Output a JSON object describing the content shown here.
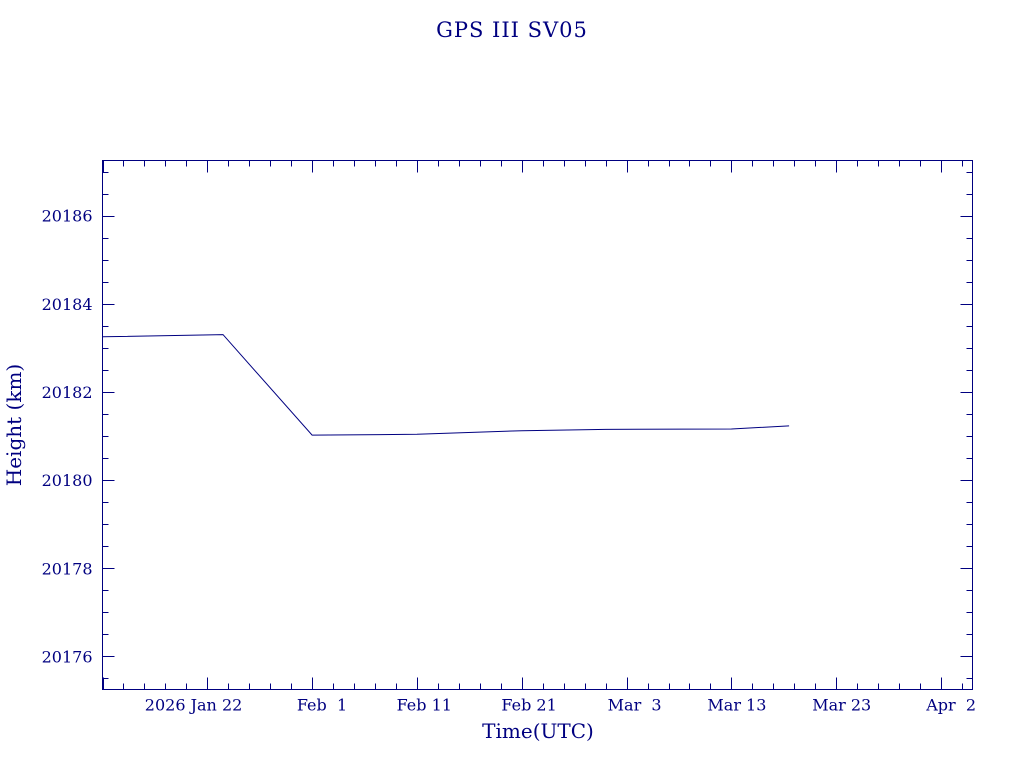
{
  "chart_data": {
    "type": "line",
    "title": "GPS III SV05",
    "xlabel": "Time(UTC)",
    "ylabel": "Height (km)",
    "x_ticks": [
      {
        "date": "2026-01-22",
        "label": "2026 Jan 22"
      },
      {
        "date": "2026-02-01",
        "label": "Feb  1"
      },
      {
        "date": "2026-02-11",
        "label": "Feb 11"
      },
      {
        "date": "2026-02-21",
        "label": "Feb 21"
      },
      {
        "date": "2026-03-03",
        "label": "Mar  3"
      },
      {
        "date": "2026-03-13",
        "label": "Mar 13"
      },
      {
        "date": "2026-03-23",
        "label": "Mar 23"
      },
      {
        "date": "2026-04-02",
        "label": "Apr  2"
      }
    ],
    "y_ticks": [
      20176,
      20178,
      20180,
      20182,
      20184,
      20186
    ],
    "xlim": [
      "2026-01-12",
      "2026-04-05"
    ],
    "ylim": [
      20175.25,
      20187.25
    ],
    "grid": false,
    "series": [
      {
        "x": [
          "2026-01-12",
          "2026-01-23 12:00",
          "2026-02-01",
          "2026-02-11",
          "2026-02-21",
          "2026-03-01",
          "2026-03-13",
          "2026-03-18 12:00"
        ],
        "values": [
          20183.25,
          20183.3,
          20181.02,
          20181.04,
          20181.12,
          20181.15,
          20181.16,
          20181.23
        ]
      }
    ]
  }
}
